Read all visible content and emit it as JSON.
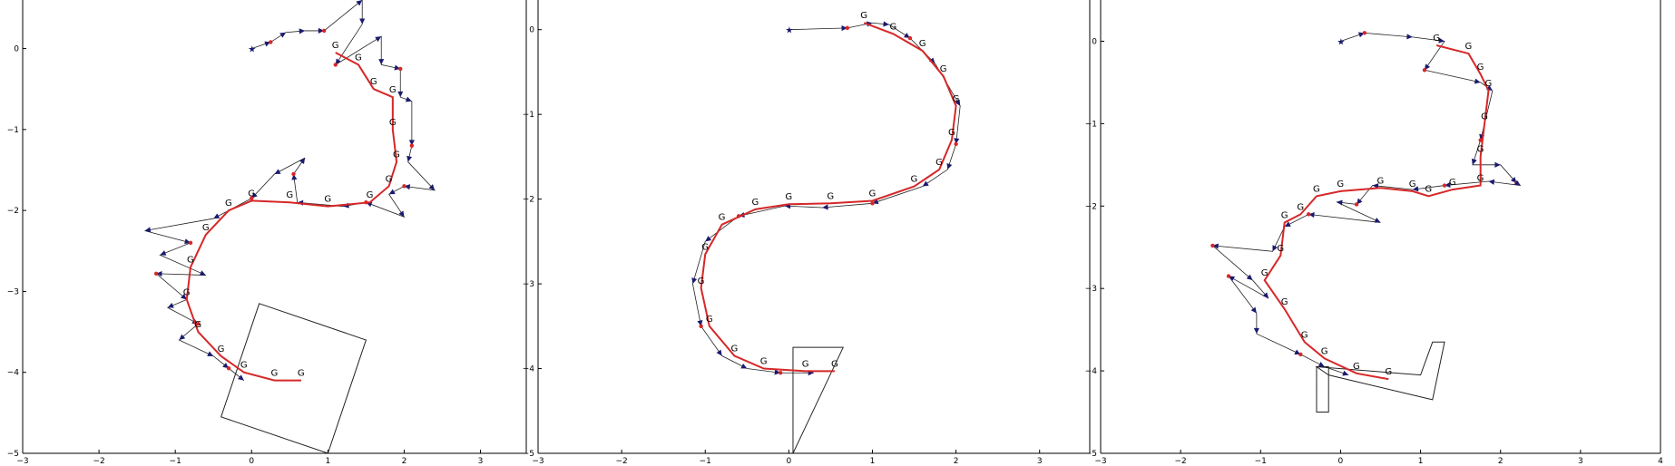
{
  "chart_data": [
    {
      "type": "line",
      "title": "",
      "xlabel": "",
      "ylabel": "",
      "xlim": [
        -3,
        3.6
      ],
      "ylim": [
        -5,
        0.6
      ],
      "xticks": [
        "−3",
        "−2",
        "−1",
        "0",
        "1",
        "2",
        "3"
      ],
      "yticks": [
        "0",
        "−1",
        "−2",
        "−3",
        "−4",
        "−5"
      ],
      "xtick_values": [
        -3,
        -2,
        -1,
        0,
        1,
        2,
        3
      ],
      "ytick_values": [
        0,
        -1,
        -2,
        -3,
        -4,
        -5
      ],
      "series": [
        {
          "role": "path",
          "color": "#d62728",
          "points": [
            [
              1.1,
              -0.05
            ],
            [
              1.4,
              -0.2
            ],
            [
              1.6,
              -0.5
            ],
            [
              1.85,
              -0.6
            ],
            [
              1.85,
              -1.0
            ],
            [
              1.9,
              -1.4
            ],
            [
              1.8,
              -1.7
            ],
            [
              1.55,
              -1.9
            ],
            [
              1.0,
              -1.95
            ],
            [
              0.5,
              -1.9
            ],
            [
              0.0,
              -1.88
            ],
            [
              -0.3,
              -2.0
            ],
            [
              -0.6,
              -2.3
            ],
            [
              -0.8,
              -2.7
            ],
            [
              -0.85,
              -3.1
            ],
            [
              -0.7,
              -3.5
            ],
            [
              -0.4,
              -3.8
            ],
            [
              -0.1,
              -4.0
            ],
            [
              0.3,
              -4.1
            ],
            [
              0.65,
              -4.1
            ]
          ]
        },
        {
          "role": "estimate",
          "color": "#000000",
          "points": [
            [
              0.0,
              0.0
            ],
            [
              0.25,
              0.08
            ],
            [
              0.45,
              0.2
            ],
            [
              0.7,
              0.22
            ],
            [
              0.95,
              0.22
            ],
            [
              1.45,
              0.6
            ],
            [
              1.45,
              0.3
            ],
            [
              1.1,
              -0.2
            ],
            [
              1.7,
              0.15
            ],
            [
              1.7,
              -0.2
            ],
            [
              1.95,
              -0.25
            ],
            [
              1.95,
              -0.6
            ],
            [
              2.1,
              -0.65
            ],
            [
              2.1,
              -1.2
            ],
            [
              2.05,
              -1.4
            ],
            [
              2.4,
              -1.75
            ],
            [
              2.0,
              -1.7
            ],
            [
              1.8,
              -1.8
            ],
            [
              2.0,
              -2.08
            ],
            [
              1.5,
              -1.9
            ],
            [
              1.2,
              -1.95
            ],
            [
              0.6,
              -1.9
            ],
            [
              0.55,
              -1.55
            ],
            [
              0.7,
              -1.35
            ],
            [
              0.3,
              -1.55
            ],
            [
              0.0,
              -1.85
            ],
            [
              -0.5,
              -2.1
            ],
            [
              -1.4,
              -2.25
            ],
            [
              -0.8,
              -2.4
            ],
            [
              -1.2,
              -2.55
            ],
            [
              -0.6,
              -2.8
            ],
            [
              -1.25,
              -2.78
            ],
            [
              -0.85,
              -3.1
            ],
            [
              -1.1,
              -3.2
            ],
            [
              -0.7,
              -3.4
            ],
            [
              -0.95,
              -3.6
            ],
            [
              -0.5,
              -3.8
            ],
            [
              -0.3,
              -3.95
            ],
            [
              -0.1,
              -4.1
            ]
          ]
        }
      ],
      "landmarks": [
        {
          "role": "start",
          "symbol": "★"
        },
        {
          "role": "goal",
          "symbol": "G"
        }
      ],
      "polygon": [
        [
          0.1,
          -3.15
        ],
        [
          1.5,
          -3.6
        ],
        [
          1.0,
          -5.0
        ],
        [
          -0.4,
          -4.55
        ]
      ]
    },
    {
      "type": "line",
      "title": "",
      "xlabel": "",
      "ylabel": "",
      "xlim": [
        -3,
        3.6
      ],
      "ylim": [
        -5,
        0.35
      ],
      "xticks": [
        "−3",
        "−2",
        "−1",
        "0",
        "1",
        "2",
        "3"
      ],
      "yticks": [
        "0",
        "−1",
        "−2",
        "−3",
        "−4",
        "−5"
      ],
      "xtick_values": [
        -3,
        -2,
        -1,
        0,
        1,
        2,
        3
      ],
      "ytick_values": [
        0,
        -1,
        -2,
        -3,
        -4,
        -5
      ],
      "series": [
        {
          "role": "path",
          "color": "#d62728",
          "points": [
            [
              0.9,
              0.08
            ],
            [
              1.25,
              -0.05
            ],
            [
              1.6,
              -0.25
            ],
            [
              1.85,
              -0.55
            ],
            [
              2.0,
              -0.9
            ],
            [
              1.95,
              -1.3
            ],
            [
              1.8,
              -1.65
            ],
            [
              1.5,
              -1.85
            ],
            [
              1.0,
              -2.02
            ],
            [
              0.5,
              -2.05
            ],
            [
              0.0,
              -2.06
            ],
            [
              -0.4,
              -2.12
            ],
            [
              -0.8,
              -2.3
            ],
            [
              -1.0,
              -2.65
            ],
            [
              -1.05,
              -3.05
            ],
            [
              -0.95,
              -3.5
            ],
            [
              -0.65,
              -3.85
            ],
            [
              -0.3,
              -4.0
            ],
            [
              0.2,
              -4.03
            ],
            [
              0.55,
              -4.03
            ]
          ]
        },
        {
          "role": "estimate",
          "color": "#000000",
          "points": [
            [
              0.0,
              0.0
            ],
            [
              0.7,
              0.02
            ],
            [
              1.0,
              0.08
            ],
            [
              1.2,
              0.06
            ],
            [
              1.45,
              -0.1
            ],
            [
              1.75,
              -0.4
            ],
            [
              2.05,
              -0.9
            ],
            [
              2.0,
              -1.35
            ],
            [
              1.9,
              -1.65
            ],
            [
              1.6,
              -1.85
            ],
            [
              1.0,
              -2.05
            ],
            [
              0.4,
              -2.1
            ],
            [
              -0.05,
              -2.08
            ],
            [
              -0.6,
              -2.2
            ],
            [
              -1.0,
              -2.5
            ],
            [
              -1.15,
              -3.0
            ],
            [
              -1.05,
              -3.5
            ],
            [
              -0.8,
              -3.85
            ],
            [
              -0.5,
              -4.0
            ],
            [
              -0.1,
              -4.05
            ],
            [
              0.3,
              -4.05
            ]
          ]
        }
      ],
      "landmarks": [
        {
          "role": "start",
          "symbol": "★"
        },
        {
          "role": "goal",
          "symbol": "G"
        }
      ],
      "polygon": [
        [
          0.05,
          -3.75
        ],
        [
          0.65,
          -3.75
        ],
        [
          0.05,
          -5.0
        ]
      ]
    },
    {
      "type": "line",
      "title": "",
      "xlabel": "",
      "ylabel": "",
      "xlim": [
        -3,
        4
      ],
      "ylim": [
        -5,
        0.5
      ],
      "xticks": [
        "−3",
        "−2",
        "−1",
        "0",
        "1",
        "2",
        "3",
        "4"
      ],
      "yticks": [
        "0",
        "−1",
        "−2",
        "−3",
        "−4",
        "−5"
      ],
      "xtick_values": [
        -3,
        -2,
        -1,
        0,
        1,
        2,
        3,
        4
      ],
      "ytick_values": [
        0,
        -1,
        -2,
        -3,
        -4,
        -5
      ],
      "series": [
        {
          "role": "path",
          "color": "#d62728",
          "points": [
            [
              1.2,
              -0.05
            ],
            [
              1.6,
              -0.15
            ],
            [
              1.75,
              -0.4
            ],
            [
              1.85,
              -0.6
            ],
            [
              1.8,
              -1.0
            ],
            [
              1.75,
              -1.4
            ],
            [
              1.75,
              -1.75
            ],
            [
              1.4,
              -1.8
            ],
            [
              1.1,
              -1.88
            ],
            [
              0.9,
              -1.82
            ],
            [
              0.5,
              -1.78
            ],
            [
              0.0,
              -1.82
            ],
            [
              -0.3,
              -1.88
            ],
            [
              -0.5,
              -2.1
            ],
            [
              -0.7,
              -2.2
            ],
            [
              -0.75,
              -2.6
            ],
            [
              -0.95,
              -2.9
            ],
            [
              -0.7,
              -3.25
            ],
            [
              -0.45,
              -3.65
            ],
            [
              -0.2,
              -3.85
            ],
            [
              0.2,
              -4.03
            ],
            [
              0.6,
              -4.1
            ]
          ]
        },
        {
          "role": "estimate",
          "color": "#000000",
          "points": [
            [
              0.0,
              0.0
            ],
            [
              0.3,
              0.1
            ],
            [
              0.9,
              0.05
            ],
            [
              1.3,
              0.0
            ],
            [
              1.05,
              -0.35
            ],
            [
              1.75,
              -0.5
            ],
            [
              1.9,
              -0.6
            ],
            [
              1.75,
              -1.2
            ],
            [
              1.65,
              -1.5
            ],
            [
              2.0,
              -1.5
            ],
            [
              2.2,
              -1.72
            ],
            [
              2.25,
              -1.75
            ],
            [
              1.85,
              -1.7
            ],
            [
              1.3,
              -1.75
            ],
            [
              0.9,
              -1.8
            ],
            [
              0.4,
              -1.75
            ],
            [
              0.2,
              -1.98
            ],
            [
              -0.05,
              -1.95
            ],
            [
              0.5,
              -2.2
            ],
            [
              -0.4,
              -2.1
            ],
            [
              -0.7,
              -2.25
            ],
            [
              -0.85,
              -2.55
            ],
            [
              -1.6,
              -2.48
            ],
            [
              -1.1,
              -2.9
            ],
            [
              -0.9,
              -3.12
            ],
            [
              -1.4,
              -2.85
            ],
            [
              -1.05,
              -3.3
            ],
            [
              -1.05,
              -3.55
            ],
            [
              -0.5,
              -3.8
            ],
            [
              -0.2,
              -3.95
            ],
            [
              0.1,
              -4.05
            ]
          ]
        }
      ],
      "landmarks": [
        {
          "role": "start",
          "symbol": "★"
        },
        {
          "role": "goal",
          "symbol": "G"
        }
      ],
      "polygon": [
        [
          -0.3,
          -3.95
        ],
        [
          -0.15,
          -3.95
        ],
        [
          -0.15,
          -4.5
        ],
        [
          -0.3,
          -4.5
        ],
        [
          -0.3,
          -3.95
        ],
        [
          1.0,
          -4.05
        ],
        [
          1.15,
          -3.65
        ],
        [
          1.3,
          -3.65
        ],
        [
          1.15,
          -4.35
        ],
        [
          -0.15,
          -4.05
        ]
      ]
    }
  ]
}
